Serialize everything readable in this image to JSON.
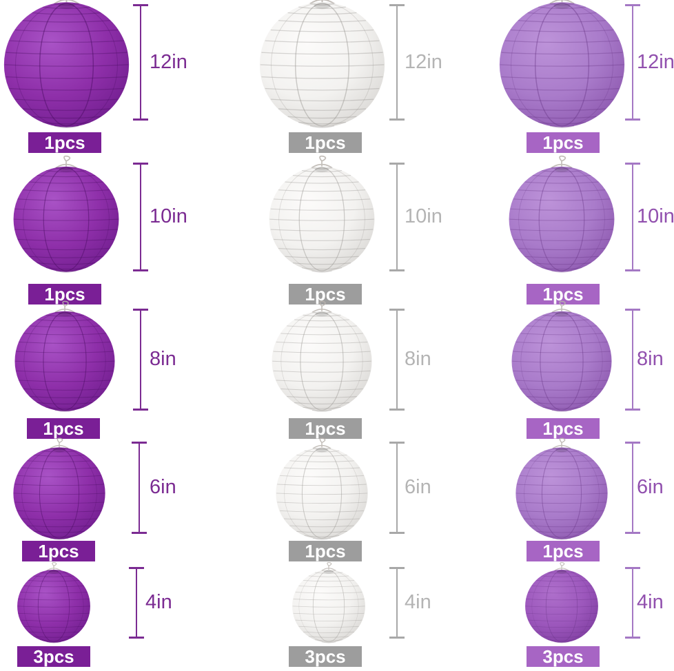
{
  "page": {
    "background": "#ffffff",
    "description": "Paper lantern size chart: three colors in five sizes with quantities"
  },
  "rows": [
    {
      "size_label": "12in",
      "qty_label": "1pcs"
    },
    {
      "size_label": "10in",
      "qty_label": "1pcs"
    },
    {
      "size_label": "8in",
      "qty_label": "1pcs"
    },
    {
      "size_label": "6in",
      "qty_label": "1pcs"
    },
    {
      "size_label": "4in",
      "qty_label": "3pcs"
    }
  ],
  "columns": [
    {
      "name": "dark-purple-lantern",
      "lantern": {
        "highlight": "#a953c6",
        "base": "#8e2fa9",
        "shadow": "#6f1d8d",
        "rib": "rgba(58,5,84,0.30)",
        "seam": "rgba(70,10,95,0.45)",
        "wire": "#b8b3ad"
      },
      "badge_bg": "#7a1f96",
      "badge_text_color": "#ffffff",
      "label_color": "#7b2b92",
      "ruler_color": "#7b2b92"
    },
    {
      "name": "white-lantern",
      "lantern": {
        "highlight": "#fcfbfa",
        "base": "#f3f2f0",
        "shadow": "#d8d6d3",
        "rib": "rgba(128,126,122,0.30)",
        "seam": "rgba(150,148,145,0.45)",
        "wire": "#b8b3ad"
      },
      "badge_bg": "#9d9d9d",
      "badge_text_color": "#ffffff",
      "label_color": "#b4b4b4",
      "ruler_color": "#a8a8a8"
    },
    {
      "name": "light-purple-lantern",
      "lantern": {
        "highlight": "#bd93d9",
        "base": "#a97bca",
        "shadow": "#8b56ad",
        "rib": "rgba(88,40,118,0.28)",
        "seam": "rgba(100,50,130,0.40)",
        "wire": "#b8b3ad"
      },
      "badge_bg": "#a765c4",
      "badge_text_color": "#ffffff",
      "label_color": "#9150ae",
      "ruler_color": "#a478c4"
    }
  ],
  "overrides": {
    "r4c2": {
      "highlight": "#ae6fcb",
      "base": "#9c57bc",
      "shadow": "#7e3d9f"
    }
  }
}
